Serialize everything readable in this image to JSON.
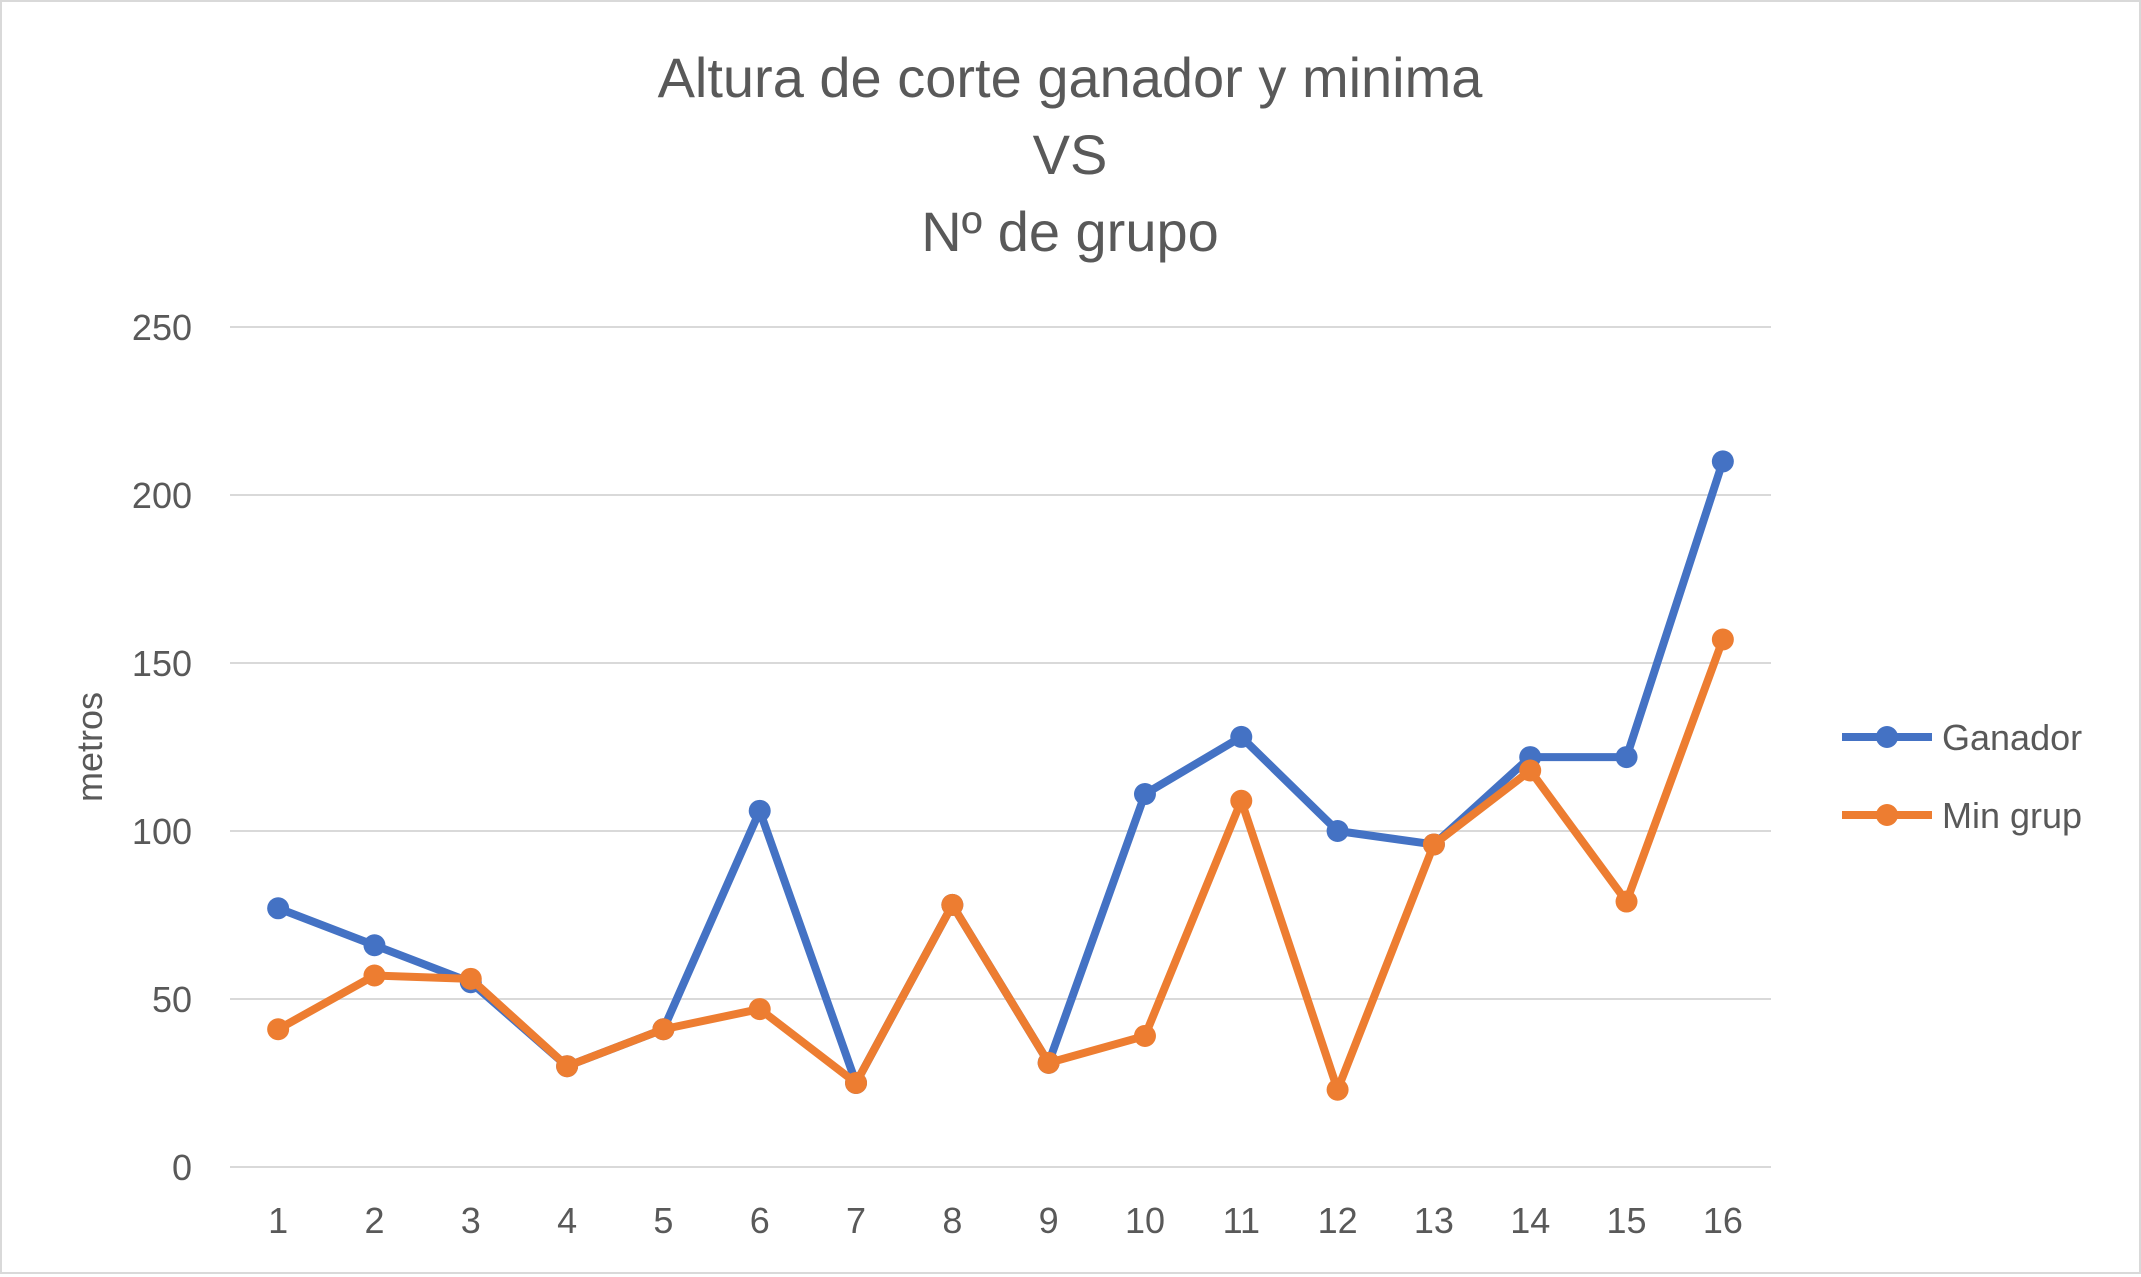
{
  "chart_data": {
    "type": "line",
    "title": [
      "Altura de corte ganador y minima",
      "VS",
      "Nº de grupo"
    ],
    "xlabel": "",
    "ylabel": "metros",
    "categories": [
      "1",
      "2",
      "3",
      "4",
      "5",
      "6",
      "7",
      "8",
      "9",
      "10",
      "11",
      "12",
      "13",
      "14",
      "15",
      "16"
    ],
    "ylim": [
      0,
      250
    ],
    "yticks": [
      0,
      50,
      100,
      150,
      200,
      250
    ],
    "grid": true,
    "legend": "right",
    "series": [
      {
        "name": "Ganador",
        "color": "#4472c4",
        "values": [
          77,
          66,
          55,
          30,
          41,
          106,
          25,
          78,
          31,
          111,
          128,
          100,
          96,
          122,
          122,
          210
        ]
      },
      {
        "name": "Min grup",
        "color": "#ed7d31",
        "values": [
          41,
          57,
          56,
          30,
          41,
          47,
          25,
          78,
          31,
          39,
          109,
          23,
          96,
          118,
          79,
          157
        ]
      }
    ]
  }
}
